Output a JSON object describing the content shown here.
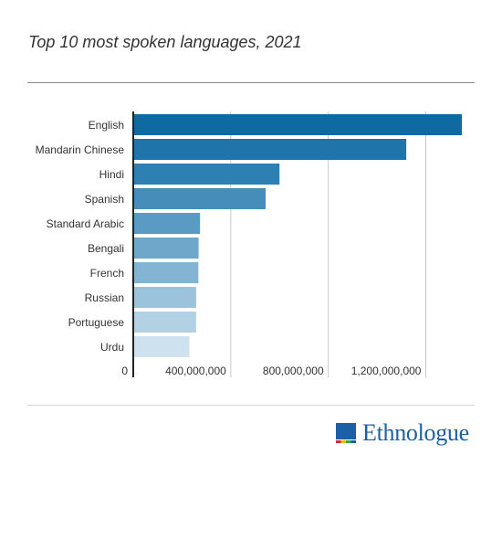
{
  "chart_data": {
    "type": "bar",
    "orientation": "horizontal",
    "title": "Top 10 most spoken languages, 2021",
    "categories": [
      "English",
      "Mandarin Chinese",
      "Hindi",
      "Spanish",
      "Standard Arabic",
      "Bengali",
      "French",
      "Russian",
      "Portuguese",
      "Urdu"
    ],
    "values": [
      1348000000,
      1120000000,
      600000000,
      543000000,
      274000000,
      268000000,
      267000000,
      258000000,
      258000000,
      230000000
    ],
    "xlim": [
      0,
      1348000000
    ],
    "x_ticks": [
      0,
      400000000,
      800000000,
      1200000000
    ],
    "x_tick_labels": [
      "0",
      "400,000,000",
      "800,000,000",
      "1,200,000,000"
    ],
    "grid": true,
    "colors": [
      "#0f6aa1",
      "#1f75aa",
      "#2e80b2",
      "#478dba",
      "#5a9bc3",
      "#6fa7cb",
      "#84b4d3",
      "#9cc3dc",
      "#b2d1e4",
      "#cde1ee"
    ]
  },
  "logo": {
    "text": "Ethnologue",
    "colors": {
      "blue": "#1b5fa6",
      "red": "#d7263d",
      "yellow": "#f2b705",
      "green": "#3ca54a"
    }
  }
}
